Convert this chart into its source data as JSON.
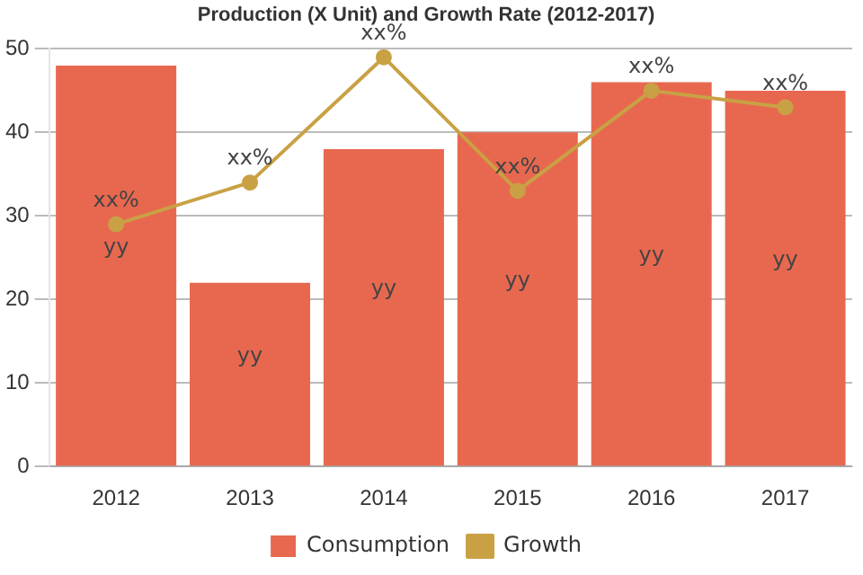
{
  "chart_data": {
    "type": "bar",
    "title": "Production (X Unit) and Growth Rate (2012-2017)",
    "categories": [
      "2012",
      "2013",
      "2014",
      "2015",
      "2016",
      "2017"
    ],
    "series": [
      {
        "name": "Consumption",
        "color": "#e8684f",
        "values": [
          48,
          22,
          38,
          40,
          46,
          45
        ],
        "value_labels": [
          "yy",
          "yy",
          "yy",
          "yy",
          "yy",
          "yy"
        ]
      },
      {
        "name": "Growth",
        "type": "line",
        "color": "#c9a144",
        "values": [
          29,
          34,
          49,
          33,
          45,
          43
        ],
        "value_labels": [
          "xx%",
          "xx%",
          "xx%",
          "xx%",
          "xx%",
          "xx%"
        ],
        "marker": "circle"
      }
    ],
    "ylim": [
      0,
      50
    ],
    "yticks": [
      0,
      10,
      20,
      30,
      40,
      50
    ],
    "grid": "y",
    "legend": "bottom"
  }
}
